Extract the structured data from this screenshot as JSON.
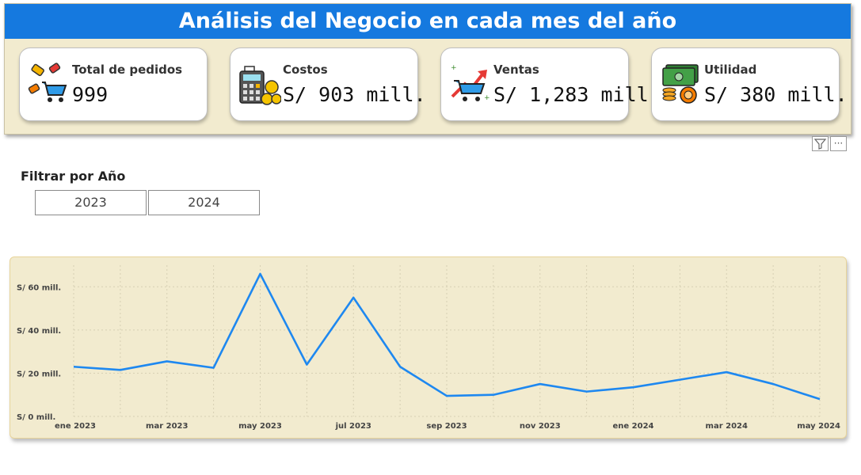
{
  "header": {
    "title": "Análisis del Negocio en cada mes del año"
  },
  "kpis": [
    {
      "label": "Total de pedidos",
      "value": "999",
      "icon": "shopping-tags-cart-icon"
    },
    {
      "label": "Costos",
      "value": "S/ 903 mill.",
      "icon": "calculator-coins-icon"
    },
    {
      "label": "Ventas",
      "value": "S/ 1,283 mill.",
      "icon": "cart-growth-arrow-icon"
    },
    {
      "label": "Utilidad",
      "value": "S/ 380 mill.",
      "icon": "money-gear-icon"
    }
  ],
  "visual_tools": {
    "filter_icon": "filter-icon",
    "more_options": "···"
  },
  "filter": {
    "title": "Filtrar por Año",
    "options": [
      "2023",
      "2024"
    ]
  },
  "colors": {
    "header": "#1579df",
    "panel": "#f2ebcf",
    "line": "#1e88f0"
  },
  "chart_data": {
    "type": "line",
    "x": [
      "ene 2023",
      "feb 2023",
      "mar 2023",
      "abr 2023",
      "may 2023",
      "jun 2023",
      "jul 2023",
      "ago 2023",
      "sep 2023",
      "oct 2023",
      "nov 2023",
      "dic 2023",
      "ene 2024",
      "feb 2024",
      "mar 2024",
      "abr 2024",
      "may 2024"
    ],
    "x_tick_labels": [
      "ene 2023",
      "mar 2023",
      "may 2023",
      "jul 2023",
      "sep 2023",
      "nov 2023",
      "ene 2024",
      "mar 2024",
      "may 2024"
    ],
    "series": [
      {
        "values": [
          23,
          21.5,
          25.5,
          22.5,
          66,
          24,
          55,
          23,
          9.5,
          10,
          15,
          11.5,
          13.5,
          17,
          20.5,
          15,
          8
        ]
      }
    ],
    "y_tick_labels": [
      "S/ 0 mill.",
      "S/ 20 mill.",
      "S/ 40 mill.",
      "S/ 60 mill."
    ],
    "y_ticks": [
      0,
      20,
      40,
      60
    ],
    "ylim": [
      0,
      70
    ],
    "grid": true,
    "legend": "none"
  }
}
